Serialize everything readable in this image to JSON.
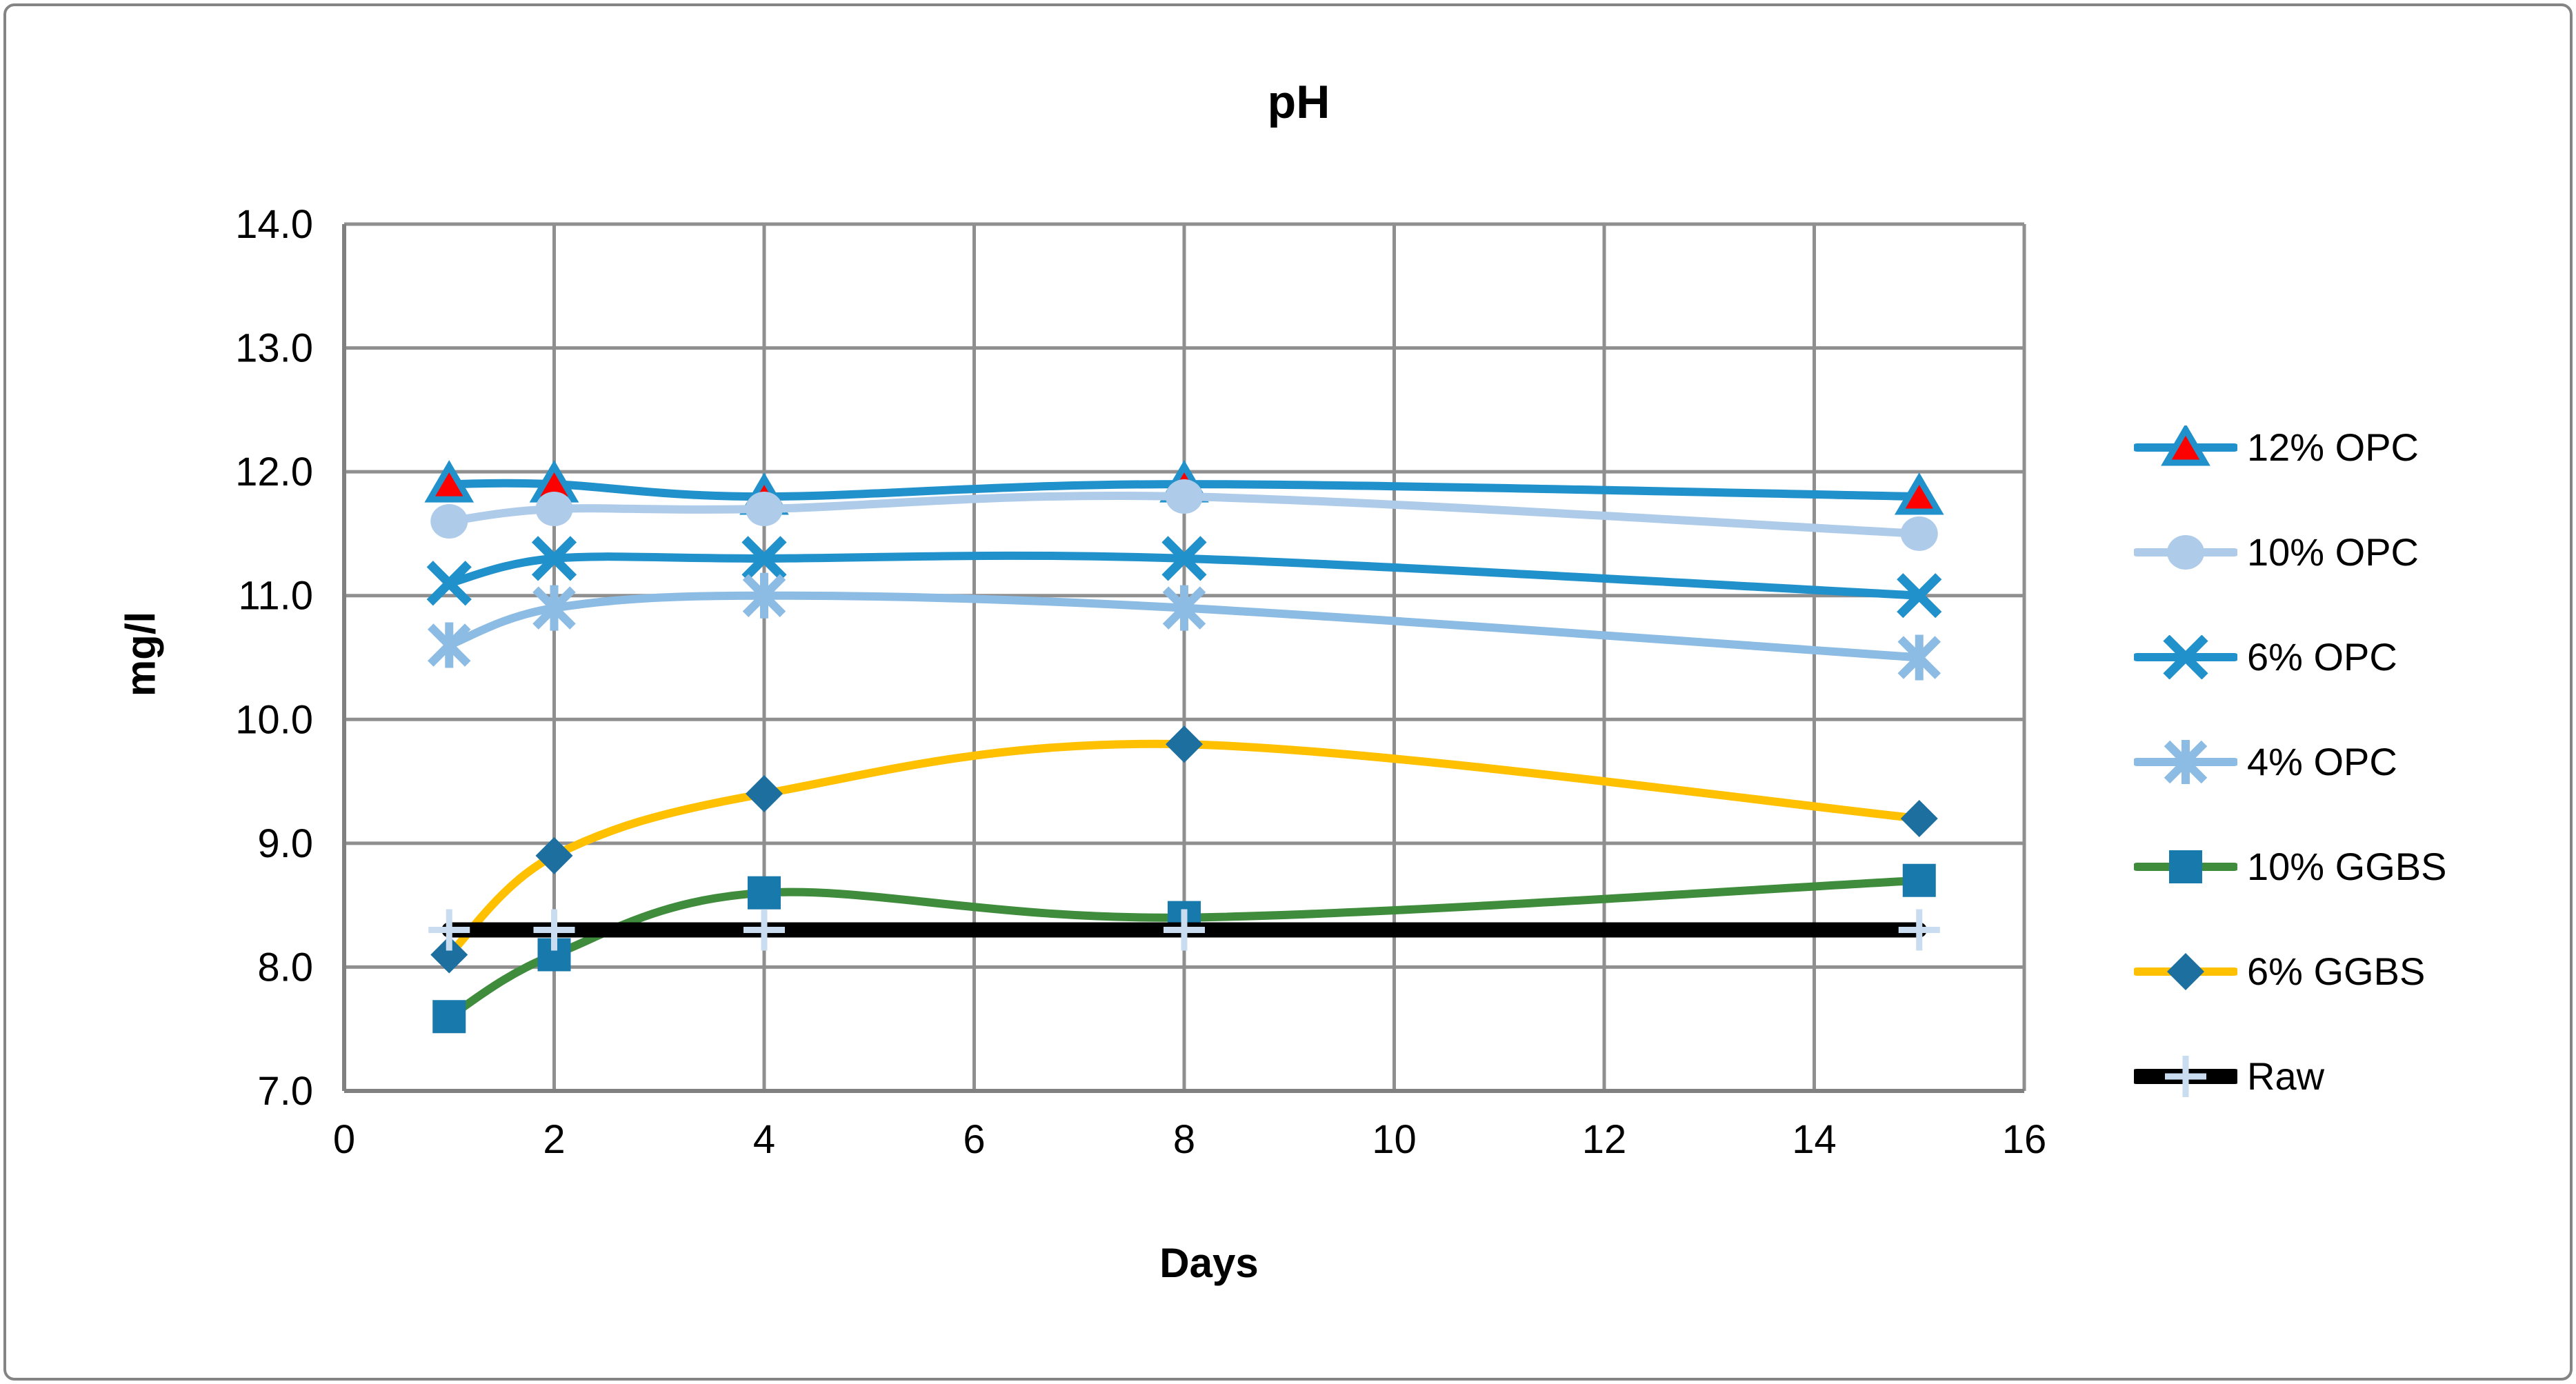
{
  "chart_data": {
    "type": "line",
    "title": "pH",
    "xlabel": "Days",
    "ylabel": "mg/l",
    "x": [
      1,
      2,
      4,
      8,
      15
    ],
    "xlim": [
      0,
      16
    ],
    "ylim": [
      7.0,
      14.0
    ],
    "x_ticks": [
      "0",
      "2",
      "4",
      "6",
      "8",
      "10",
      "12",
      "14",
      "16"
    ],
    "y_ticks": [
      "14.0",
      "13.0",
      "12.0",
      "11.0",
      "10.0",
      "9.0",
      "8.0",
      "7.0"
    ],
    "grid": true,
    "line_smoothing": true,
    "legend_position": "right",
    "series": [
      {
        "name": "12% OPC",
        "values": [
          11.9,
          11.9,
          11.8,
          11.9,
          11.8
        ],
        "line_color": "#2191CB",
        "line_width": 12,
        "marker": "triangle",
        "marker_fill": "#FE0000",
        "marker_edge": "#2191CB"
      },
      {
        "name": "10% OPC",
        "values": [
          11.6,
          11.7,
          11.7,
          11.8,
          11.5
        ],
        "line_color": "#AECBE9",
        "line_width": 12,
        "marker": "circle",
        "marker_fill": "#AECBE9",
        "marker_edge": "#AECBE9"
      },
      {
        "name": "6% OPC",
        "values": [
          11.1,
          11.3,
          11.3,
          11.3,
          11.0
        ],
        "line_color": "#2191CB",
        "line_width": 12,
        "marker": "x",
        "marker_fill": "#2191CB",
        "marker_edge": "#2191CB"
      },
      {
        "name": "4% OPC",
        "values": [
          10.6,
          10.9,
          11.0,
          10.9,
          10.5
        ],
        "line_color": "#8CBBE3",
        "line_width": 12,
        "marker": "asterisk",
        "marker_fill": "#8CBBE3",
        "marker_edge": "#8CBBE3"
      },
      {
        "name": "10% GGBS",
        "values": [
          7.6,
          8.1,
          8.6,
          8.4,
          8.7
        ],
        "line_color": "#3F8C3C",
        "line_width": 12,
        "marker": "square",
        "marker_fill": "#1879AD",
        "marker_edge": "#1879AD"
      },
      {
        "name": "6% GGBS",
        "values": [
          8.1,
          8.9,
          9.4,
          9.8,
          9.2
        ],
        "line_color": "#FFC000",
        "line_width": 12,
        "marker": "diamond",
        "marker_fill": "#1C6F9F",
        "marker_edge": "#1C6F9F"
      },
      {
        "name": "Raw",
        "values": [
          8.3,
          8.3,
          8.3,
          8.3,
          8.3
        ],
        "line_color": "#000000",
        "line_width": 22,
        "marker": "plus",
        "marker_fill": "#C9DCF0",
        "marker_edge": "#C9DCF0"
      }
    ],
    "colors": {
      "gridline": "#8F8F8F",
      "axis_line": "#808080",
      "text": "#000000",
      "frame_border": "#848484",
      "background": "#FFFFFF"
    }
  }
}
